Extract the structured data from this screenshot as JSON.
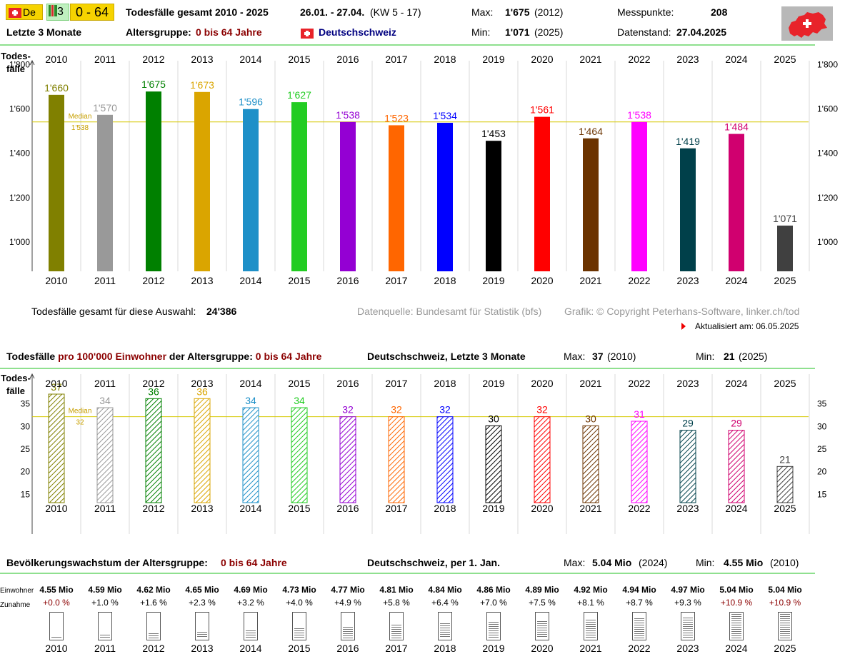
{
  "toolbar": {
    "lang": "De",
    "period_num": "3",
    "age_range": "0 - 64"
  },
  "header": {
    "title": "Todesfälle gesamt 2010 - 2025",
    "dates": "26.01. - 27.04.",
    "kw": "(KW 5 - 17)",
    "max_label": "Max:",
    "max_value": "1'675",
    "max_year": "(2012)",
    "messpunkte_label": "Messpunkte:",
    "messpunkte_value": "208",
    "period_label": "Letzte 3 Monate",
    "age_group_label": "Altersgruppe:",
    "age_group_value": "0 bis 64 Jahre",
    "region": "Deutschschweiz",
    "min_label": "Min:",
    "min_value": "1'071",
    "min_year": "(2025)",
    "datenstand_label": "Datenstand:",
    "datenstand_value": "27.04.2025"
  },
  "colors": [
    "#808000",
    "#999999",
    "#008000",
    "#daa500",
    "#1e90c8",
    "#22cc22",
    "#9400d3",
    "#ff6600",
    "#0000ff",
    "#000000",
    "#ff0000",
    "#6b3300",
    "#ff00ff",
    "#00404a",
    "#d0006f",
    "#404040"
  ],
  "axis_label": {
    "line1": "Todes-",
    "line2": "fälle"
  },
  "median_word": "Median",
  "chart_data": [
    {
      "type": "bar",
      "categories": [
        "2010",
        "2011",
        "2012",
        "2013",
        "2014",
        "2015",
        "2016",
        "2017",
        "2018",
        "2019",
        "2020",
        "2021",
        "2022",
        "2023",
        "2024",
        "2025"
      ],
      "values": [
        1660,
        1570,
        1675,
        1673,
        1596,
        1627,
        1538,
        1523,
        1534,
        1453,
        1561,
        1464,
        1538,
        1419,
        1484,
        1071
      ],
      "value_labels": [
        "1'660",
        "1'570",
        "1'675",
        "1'673",
        "1'596",
        "1'627",
        "1'538",
        "1'523",
        "1'534",
        "1'453",
        "1'561",
        "1'464",
        "1'538",
        "1'419",
        "1'484",
        "1'071"
      ],
      "ylabel": "Todes- fälle",
      "ylim": [
        865,
        1875
      ],
      "yticks": [
        1000,
        1200,
        1400,
        1600,
        1800
      ],
      "ytick_labels": [
        "1'000",
        "1'200",
        "1'400",
        "1'600",
        "1'800"
      ],
      "median": 1538,
      "median_label": "1'538",
      "grid": true
    },
    {
      "type": "bar",
      "title": "Todesfälle pro 100'000 Einwohner der Altersgruppe: 0 bis 64 Jahre",
      "categories": [
        "2010",
        "2011",
        "2012",
        "2013",
        "2014",
        "2015",
        "2016",
        "2017",
        "2018",
        "2019",
        "2020",
        "2021",
        "2022",
        "2023",
        "2024",
        "2025"
      ],
      "values": [
        37,
        34,
        36,
        36,
        34,
        34,
        32,
        32,
        32,
        30,
        32,
        30,
        31,
        29,
        29,
        21
      ],
      "value_labels": [
        "37",
        "34",
        "36",
        "36",
        "34",
        "34",
        "32",
        "32",
        "32",
        "30",
        "32",
        "30",
        "31",
        "29",
        "29",
        "21"
      ],
      "ylabel": "Todes- fälle",
      "ylim": [
        13,
        37
      ],
      "yticks": [
        15,
        20,
        25,
        30,
        35
      ],
      "ytick_labels": [
        "15",
        "20",
        "25",
        "30",
        "35"
      ],
      "median": 32,
      "median_label": "32",
      "grid": true
    },
    {
      "type": "table",
      "title": "Bevölkerungswachstum der Altersgruppe: 0 bis 64 Jahre",
      "categories": [
        "2010",
        "2011",
        "2012",
        "2013",
        "2014",
        "2015",
        "2016",
        "2017",
        "2018",
        "2019",
        "2020",
        "2021",
        "2022",
        "2023",
        "2024",
        "2025"
      ],
      "population_labels": [
        "4.55 Mio",
        "4.59 Mio",
        "4.62 Mio",
        "4.65 Mio",
        "4.69 Mio",
        "4.73 Mio",
        "4.77 Mio",
        "4.81 Mio",
        "4.84 Mio",
        "4.86 Mio",
        "4.89 Mio",
        "4.92 Mio",
        "4.94 Mio",
        "4.97 Mio",
        "5.04 Mio",
        "5.04 Mio"
      ],
      "growth_labels": [
        "+0.0 %",
        "+1.0 %",
        "+1.6 %",
        "+2.3 %",
        "+3.2 %",
        "+4.0 %",
        "+4.9 %",
        "+5.8 %",
        "+6.4 %",
        "+7.0 %",
        "+7.5 %",
        "+8.1 %",
        "+8.7 %",
        "+9.3 %",
        "+10.9 %",
        "+10.9 %"
      ],
      "growth": [
        0.0,
        1.0,
        1.6,
        2.3,
        3.2,
        4.0,
        4.9,
        5.8,
        6.4,
        7.0,
        7.5,
        8.1,
        8.7,
        9.3,
        10.9,
        10.9
      ]
    }
  ],
  "summary": {
    "total_label": "Todesfälle gesamt für diese Auswahl:",
    "total_value": "24'386",
    "source": "Datenquelle: Bundesamt für Statistik (bfs)",
    "copyright": "Grafik: © Copyright Peterhans-Software, linker.ch/tod",
    "updated": "Aktualisiert am: 06.05.2025"
  },
  "section2": {
    "t1": "Todesfälle",
    "t2": "pro 100'000 Einwohner",
    "t3": "der Altersgruppe:",
    "t4": "0 bis 64 Jahre",
    "region": "Deutschschweiz, Letzte 3 Monate",
    "max_label": "Max:",
    "max_value": "37",
    "max_year": "(2010)",
    "min_label": "Min:",
    "min_value": "21",
    "min_year": "(2025)"
  },
  "section3": {
    "t1": "Bevölkerungswachstum der Altersgruppe:",
    "t2": "0 bis 64 Jahre",
    "region": "Deutschschweiz, per 1. Jan.",
    "max_label": "Max:",
    "max_value": "5.04 Mio",
    "max_year": "(2024)",
    "min_label": "Min:",
    "min_value": "4.55 Mio",
    "min_year": "(2010)",
    "row1_label": "Einwohner",
    "row2_label": "Zunahme"
  }
}
